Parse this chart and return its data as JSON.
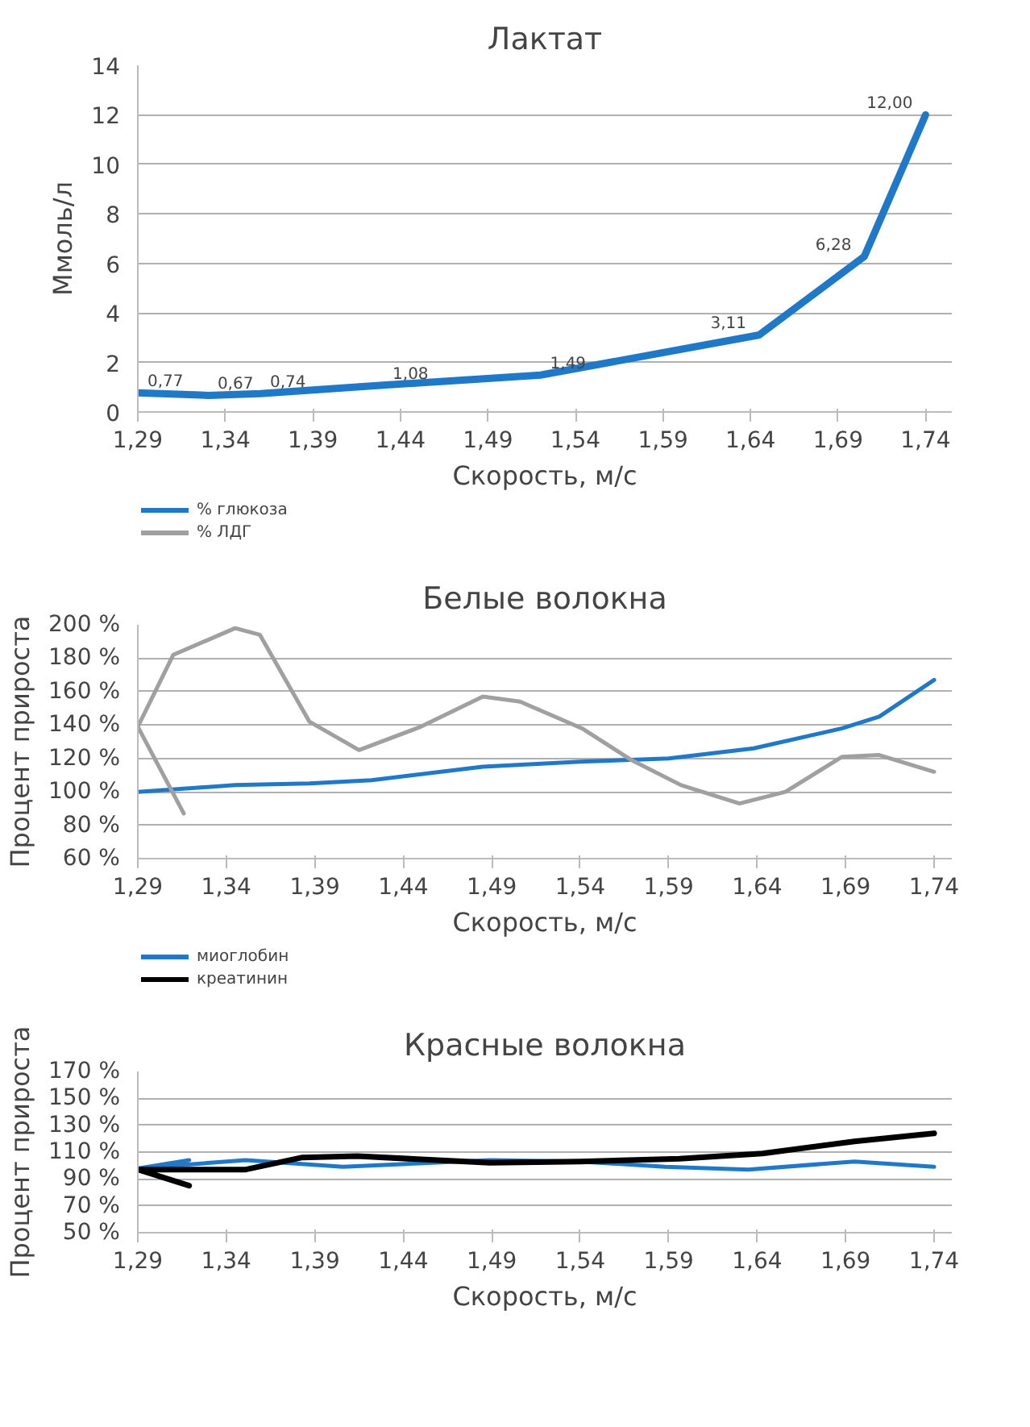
{
  "chart_data": [
    {
      "type": "line",
      "title": "Лактат",
      "xlabel": "Скорость, м/с",
      "ylabel": "Ммоль/л",
      "xlim": [
        1.29,
        1.755
      ],
      "ylim": [
        0,
        14
      ],
      "xticks": [
        {
          "value": 1.29,
          "label": "1,29"
        },
        {
          "value": 1.34,
          "label": "1,34"
        },
        {
          "value": 1.39,
          "label": "1,39"
        },
        {
          "value": 1.44,
          "label": "1,44"
        },
        {
          "value": 1.49,
          "label": "1,49"
        },
        {
          "value": 1.54,
          "label": "1,54"
        },
        {
          "value": 1.59,
          "label": "1,59"
        },
        {
          "value": 1.64,
          "label": "1,64"
        },
        {
          "value": 1.69,
          "label": "1,69"
        },
        {
          "value": 1.74,
          "label": "1,74"
        }
      ],
      "yticks": [
        0,
        2,
        4,
        6,
        8,
        10,
        12,
        14
      ],
      "grid": "y",
      "legend": false,
      "series": [
        {
          "color": "#1f78c8",
          "x": [
            1.29,
            1.33,
            1.36,
            1.43,
            1.52,
            1.645,
            1.705,
            1.74
          ],
          "values": [
            0.77,
            0.67,
            0.74,
            1.08,
            1.49,
            3.11,
            6.28,
            12.0
          ],
          "value_labels": [
            "0,77",
            "0,67",
            "0,74",
            "1,08",
            "1,49",
            "3,11",
            "6,28",
            "12,00"
          ]
        }
      ]
    },
    {
      "type": "line",
      "title": "Белые волокна",
      "xlabel": "Скорость, м/с",
      "ylabel": "Процент прироста",
      "xlim": [
        1.29,
        1.75
      ],
      "ylim": [
        60,
        200
      ],
      "xticks": [
        {
          "value": 1.29,
          "label": "1,29"
        },
        {
          "value": 1.34,
          "label": "1,34"
        },
        {
          "value": 1.39,
          "label": "1,39"
        },
        {
          "value": 1.44,
          "label": "1,44"
        },
        {
          "value": 1.49,
          "label": "1,49"
        },
        {
          "value": 1.54,
          "label": "1,54"
        },
        {
          "value": 1.59,
          "label": "1,59"
        },
        {
          "value": 1.64,
          "label": "1,64"
        },
        {
          "value": 1.69,
          "label": "1,69"
        },
        {
          "value": 1.74,
          "label": "1,74"
        }
      ],
      "yticks": [
        {
          "value": 60,
          "label": "60 %"
        },
        {
          "value": 80,
          "label": "80 %"
        },
        {
          "value": 100,
          "label": "100 %"
        },
        {
          "value": 120,
          "label": "120 %"
        },
        {
          "value": 140,
          "label": "140 %"
        },
        {
          "value": 160,
          "label": "160 %"
        },
        {
          "value": 180,
          "label": "180 %"
        },
        {
          "value": 200,
          "label": "200 %"
        }
      ],
      "grid": "y",
      "legend": "top left",
      "series": [
        {
          "name": "% глюкоза",
          "color": "#1f78c8",
          "x": [
            1.29,
            1.345,
            1.387,
            1.422,
            1.485,
            1.54,
            1.59,
            1.638,
            1.688,
            1.709,
            1.74
          ],
          "values": [
            100,
            104,
            105,
            107,
            115,
            118,
            120,
            126,
            138,
            145,
            167
          ]
        },
        {
          "name": "% ЛДГ",
          "color": "#a0a0a0",
          "x": [
            1.316,
            1.29,
            1.31,
            1.345,
            1.359,
            1.387,
            1.415,
            1.45,
            1.485,
            1.506,
            1.541,
            1.569,
            1.597,
            1.63,
            1.656,
            1.688,
            1.709,
            1.74
          ],
          "values": [
            87,
            139,
            182,
            198,
            194,
            142,
            125,
            139,
            157,
            154,
            138,
            119,
            104,
            93,
            100,
            121,
            122,
            112
          ]
        }
      ]
    },
    {
      "type": "line",
      "title": "Красные волокна",
      "xlabel": "Скорость, м/с",
      "ylabel": "Процент прироста",
      "xlim": [
        1.29,
        1.75
      ],
      "ylim": [
        50,
        170
      ],
      "xticks": [
        {
          "value": 1.29,
          "label": "1,29"
        },
        {
          "value": 1.34,
          "label": "1,34"
        },
        {
          "value": 1.39,
          "label": "1,39"
        },
        {
          "value": 1.44,
          "label": "1,44"
        },
        {
          "value": 1.49,
          "label": "1,49"
        },
        {
          "value": 1.54,
          "label": "1,54"
        },
        {
          "value": 1.59,
          "label": "1,59"
        },
        {
          "value": 1.64,
          "label": "1,64"
        },
        {
          "value": 1.69,
          "label": "1,69"
        },
        {
          "value": 1.74,
          "label": "1,74"
        }
      ],
      "yticks": [
        {
          "value": 50,
          "label": "50 %"
        },
        {
          "value": 70,
          "label": "70 %"
        },
        {
          "value": 90,
          "label": "90 %"
        },
        {
          "value": 110,
          "label": "110 %"
        },
        {
          "value": 130,
          "label": "130 %"
        },
        {
          "value": 150,
          "label": "150 %"
        },
        {
          "value": 170,
          "label": "170 %"
        }
      ],
      "grid": "y",
      "legend": "top left",
      "series": [
        {
          "name": "миоглобин",
          "color": "#1f78c8",
          "x": [
            1.319,
            1.291,
            1.351,
            1.406,
            1.489,
            1.54,
            1.588,
            1.635,
            1.695,
            1.74
          ],
          "values": [
            104,
            98,
            104,
            99,
            104,
            103,
            99,
            97,
            103,
            99
          ]
        },
        {
          "name": "креатинин",
          "color": "#000000",
          "x": [
            1.319,
            1.29,
            1.327,
            1.351,
            1.383,
            1.414,
            1.489,
            1.54,
            1.596,
            1.643,
            1.695,
            1.74
          ],
          "values": [
            85,
            97,
            97,
            97,
            106,
            107,
            102,
            103,
            105,
            109,
            118,
            124
          ]
        }
      ]
    }
  ]
}
